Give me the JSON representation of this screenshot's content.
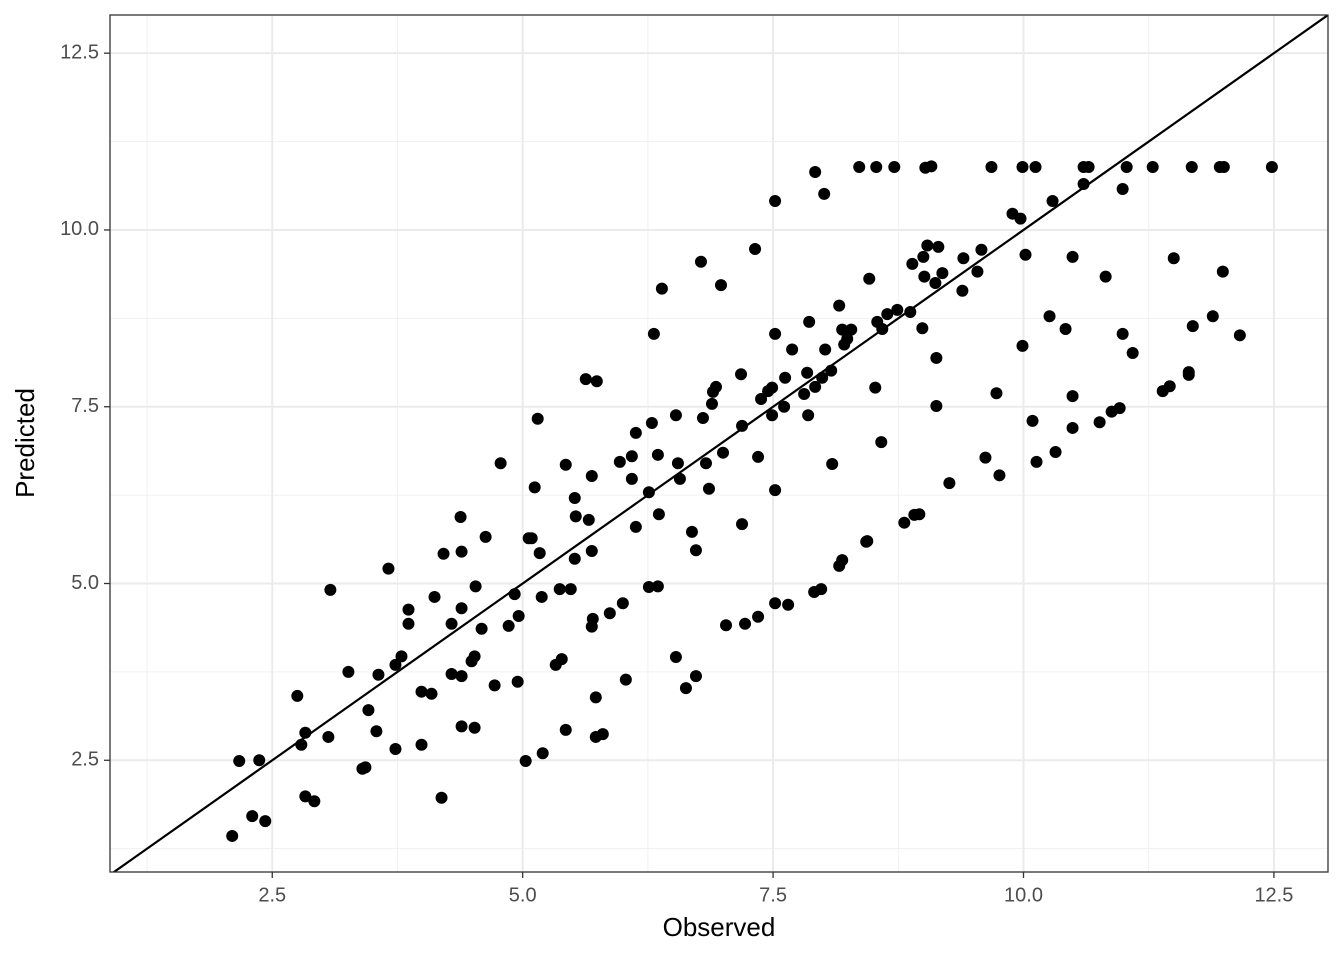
{
  "chart_data": {
    "type": "scatter",
    "x_label": "Observed",
    "y_label": "Predicted",
    "xlim": [
      0.88,
      13.04
    ],
    "ylim": [
      0.92,
      13.04
    ],
    "xticks": [
      2.5,
      {
        "value": 5,
        "label": "5.0"
      },
      7.5,
      {
        "value": 10,
        "label": "10.0"
      },
      12.5
    ],
    "yticks": [
      2.5,
      {
        "value": 5,
        "label": "5.0"
      },
      7.5,
      {
        "value": 10,
        "label": "10.0"
      },
      12.5
    ],
    "grid": true,
    "minor_grid": true,
    "color": "#000000",
    "reference_line": {
      "slope": 1,
      "intercept": 0
    },
    "x": [
      2.1,
      2.17,
      2.3,
      2.37,
      2.43,
      2.75,
      2.79,
      2.83,
      2.83,
      2.92,
      3.06,
      3.08,
      3.26,
      3.4,
      3.43,
      3.46,
      3.54,
      3.56,
      3.66,
      3.73,
      3.73,
      3.79,
      3.86,
      3.86,
      3.99,
      3.99,
      4.09,
      4.12,
      4.19,
      4.21,
      4.29,
      4.29,
      4.38,
      4.39,
      4.39,
      4.39,
      4.39,
      4.49,
      4.52,
      4.52,
      4.53,
      4.59,
      4.63,
      4.72,
      4.78,
      4.86,
      4.92,
      4.95,
      4.96,
      5.03,
      5.06,
      5.09,
      5.12,
      5.15,
      5.17,
      5.19,
      5.2,
      5.33,
      5.37,
      5.39,
      5.43,
      5.43,
      5.48,
      5.52,
      5.52,
      5.53,
      5.63,
      5.66,
      5.69,
      5.69,
      5.7,
      5.69,
      5.74,
      5.73,
      5.73,
      5.8,
      5.87,
      5.97,
      6.0,
      6.03,
      6.09,
      6.09,
      6.13,
      6.13,
      6.26,
      6.26,
      6.29,
      6.31,
      6.35,
      6.35,
      6.36,
      6.39,
      6.53,
      6.53,
      6.55,
      6.57,
      6.63,
      6.69,
      6.73,
      6.73,
      6.78,
      6.8,
      6.83,
      6.86,
      6.89,
      6.9,
      6.93,
      6.98,
      7.0,
      7.03,
      7.18,
      7.19,
      7.19,
      7.22,
      7.32,
      7.35,
      7.35,
      7.38,
      7.45,
      7.49,
      7.49,
      7.52,
      7.52,
      7.52,
      7.52,
      7.61,
      7.62,
      7.65,
      7.69,
      7.81,
      7.84,
      7.85,
      7.86,
      7.91,
      7.92,
      7.92,
      7.98,
      7.99,
      8.01,
      8.02,
      8.08,
      8.09,
      8.16,
      8.16,
      8.19,
      8.19,
      8.21,
      8.24,
      8.28,
      8.36,
      8.43,
      8.44,
      8.46,
      8.52,
      8.53,
      8.54,
      8.58,
      8.59,
      8.64,
      8.71,
      8.74,
      8.81,
      8.87,
      8.89,
      8.91,
      8.96,
      8.99,
      9.0,
      9.01,
      9.02,
      9.04,
      9.08,
      9.12,
      9.13,
      9.13,
      9.15,
      9.19,
      9.26,
      9.39,
      9.4,
      9.54,
      9.58,
      9.62,
      9.68,
      9.73,
      9.76,
      9.89,
      9.97,
      9.99,
      9.99,
      10.02,
      10.09,
      10.12,
      10.13,
      10.26,
      10.29,
      10.32,
      10.42,
      10.49,
      10.49,
      10.49,
      10.6,
      10.6,
      10.65,
      10.76,
      10.82,
      10.88,
      10.96,
      10.99,
      10.99,
      11.03,
      11.09,
      11.29,
      11.39,
      11.46,
      11.5,
      11.65,
      11.65,
      11.68,
      11.69,
      11.89,
      11.96,
      12.0,
      11.99,
      12.16,
      12.48
    ],
    "values": [
      1.43,
      2.49,
      1.71,
      2.5,
      1.64,
      3.41,
      2.72,
      2.89,
      1.99,
      1.92,
      2.83,
      4.91,
      3.75,
      2.38,
      2.4,
      3.21,
      2.91,
      3.71,
      5.21,
      3.85,
      2.66,
      3.97,
      4.63,
      4.43,
      3.47,
      2.72,
      3.44,
      4.81,
      1.97,
      5.42,
      4.43,
      3.72,
      5.94,
      5.45,
      4.65,
      2.98,
      3.69,
      3.9,
      3.97,
      2.96,
      4.96,
      4.36,
      5.66,
      3.56,
      6.7,
      4.4,
      4.85,
      3.61,
      4.54,
      2.49,
      5.64,
      5.64,
      6.36,
      7.33,
      5.43,
      4.81,
      2.6,
      3.85,
      4.92,
      3.93,
      6.68,
      2.93,
      4.92,
      5.35,
      6.21,
      5.95,
      7.89,
      5.9,
      6.52,
      5.46,
      4.5,
      4.39,
      7.86,
      3.39,
      2.83,
      2.87,
      4.58,
      6.72,
      4.72,
      3.64,
      6.8,
      6.48,
      5.8,
      7.13,
      4.95,
      6.29,
      7.27,
      8.53,
      4.96,
      6.82,
      5.98,
      9.17,
      7.38,
      3.96,
      6.7,
      6.48,
      3.52,
      5.73,
      5.47,
      3.69,
      9.55,
      7.34,
      6.7,
      6.34,
      7.54,
      7.71,
      7.78,
      9.22,
      6.85,
      4.41,
      7.96,
      5.84,
      7.23,
      4.43,
      9.73,
      6.79,
      4.53,
      7.61,
      7.72,
      7.38,
      7.77,
      6.32,
      8.53,
      10.41,
      4.72,
      7.5,
      7.91,
      4.7,
      8.31,
      7.68,
      7.98,
      7.38,
      8.7,
      4.88,
      10.82,
      7.78,
      4.92,
      7.91,
      10.51,
      8.31,
      8.01,
      6.69,
      8.93,
      5.25,
      5.33,
      8.59,
      8.38,
      8.46,
      8.59,
      10.89,
      5.59,
      5.6,
      9.31,
      7.77,
      10.89,
      8.7,
      7.0,
      8.6,
      8.81,
      10.89,
      8.87,
      5.86,
      8.84,
      9.52,
      5.97,
      5.98,
      8.61,
      9.62,
      9.34,
      10.88,
      9.78,
      10.9,
      9.25,
      8.19,
      7.51,
      9.76,
      9.39,
      6.42,
      9.14,
      9.6,
      9.41,
      9.72,
      6.78,
      10.89,
      7.69,
      6.53,
      10.23,
      10.16,
      10.89,
      8.36,
      9.65,
      7.3,
      10.89,
      6.72,
      8.78,
      10.41,
      6.86,
      8.6,
      9.62,
      7.65,
      7.2,
      10.65,
      10.89,
      10.89,
      7.28,
      9.34,
      7.43,
      7.48,
      10.58,
      8.53,
      10.89,
      8.26,
      10.89,
      7.72,
      7.79,
      9.6,
      7.95,
      7.99,
      10.89,
      8.64,
      8.78,
      10.89,
      10.89,
      9.41,
      8.51,
      10.89
    ]
  }
}
